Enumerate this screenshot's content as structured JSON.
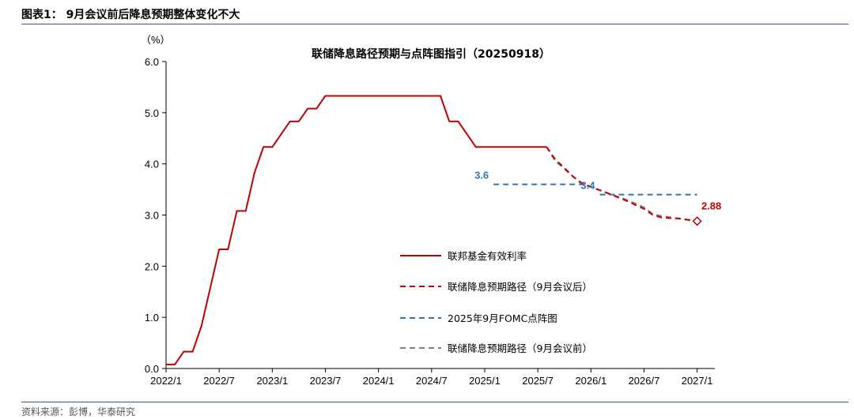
{
  "header": {
    "title": "图表1： 9月会议前后降息预期整体变化不大"
  },
  "footer": {
    "source": "资料来源：彭博，华泰研究"
  },
  "colors": {
    "red": "#c00000",
    "blue": "#2e75b6",
    "gray": "#7f7f7f",
    "rule": "#3b5a7a"
  },
  "chart_data": {
    "type": "line",
    "title": "联储降息路径预期与点阵图指引（20250918）",
    "ylabel": "（%）",
    "ylim": [
      0,
      6
    ],
    "yticks": [
      "0.0",
      "1.0",
      "2.0",
      "3.0",
      "4.0",
      "5.0",
      "6.0"
    ],
    "xlim": [
      "2022-01",
      "2027-03"
    ],
    "xticks": [
      "2022/1",
      "2022/7",
      "2023/1",
      "2023/7",
      "2024/1",
      "2024/7",
      "2025/1",
      "2025/7",
      "2026/1",
      "2026/7",
      "2027/1"
    ],
    "legend_position": "center-right",
    "grid": false,
    "series": [
      {
        "name": "联邦基金有效利率",
        "style": "solid",
        "color": "#c00000",
        "points": [
          [
            "2022-01",
            0.08
          ],
          [
            "2022-02",
            0.08
          ],
          [
            "2022-03",
            0.33
          ],
          [
            "2022-04",
            0.33
          ],
          [
            "2022-05",
            0.83
          ],
          [
            "2022-06",
            1.58
          ],
          [
            "2022-07",
            2.33
          ],
          [
            "2022-08",
            2.33
          ],
          [
            "2022-09",
            3.08
          ],
          [
            "2022-10",
            3.08
          ],
          [
            "2022-11",
            3.83
          ],
          [
            "2022-12",
            4.33
          ],
          [
            "2023-01",
            4.33
          ],
          [
            "2023-02",
            4.58
          ],
          [
            "2023-03",
            4.83
          ],
          [
            "2023-04",
            4.83
          ],
          [
            "2023-05",
            5.08
          ],
          [
            "2023-06",
            5.08
          ],
          [
            "2023-07",
            5.33
          ],
          [
            "2024-08",
            5.33
          ],
          [
            "2024-09",
            4.83
          ],
          [
            "2024-10",
            4.83
          ],
          [
            "2024-11",
            4.58
          ],
          [
            "2024-12",
            4.33
          ],
          [
            "2025-08",
            4.33
          ]
        ]
      },
      {
        "name": "联储降息预期路径（9月会议后）",
        "style": "dashed",
        "color": "#c00000",
        "points": [
          [
            "2025-08",
            4.33
          ],
          [
            "2025-09",
            4.08
          ],
          [
            "2025-10",
            3.92
          ],
          [
            "2025-11",
            3.75
          ],
          [
            "2025-12",
            3.62
          ],
          [
            "2026-01",
            3.55
          ],
          [
            "2026-03",
            3.42
          ],
          [
            "2026-05",
            3.28
          ],
          [
            "2026-07",
            3.12
          ],
          [
            "2026-08",
            3.0
          ],
          [
            "2026-09",
            2.95
          ],
          [
            "2026-11",
            2.93
          ],
          [
            "2027-01",
            2.88
          ]
        ]
      },
      {
        "name": "2025年9月FOMC点阵图",
        "style": "dashed",
        "color": "#2e75b6",
        "segments": [
          {
            "x": [
              "2025-02",
              "2025-12"
            ],
            "y": 3.6
          },
          {
            "x": [
              "2026-02",
              "2027-01"
            ],
            "y": 3.4
          }
        ]
      },
      {
        "name": "联储降息预期路径（9月会议前）",
        "style": "dashed",
        "color": "#7f7f7f",
        "points": [
          [
            "2025-08",
            4.33
          ],
          [
            "2025-09",
            4.05
          ],
          [
            "2025-10",
            3.9
          ],
          [
            "2025-11",
            3.75
          ],
          [
            "2025-12",
            3.6
          ],
          [
            "2026-01",
            3.55
          ],
          [
            "2026-03",
            3.42
          ],
          [
            "2026-05",
            3.3
          ],
          [
            "2026-07",
            3.15
          ],
          [
            "2026-08",
            3.02
          ],
          [
            "2026-09",
            2.98
          ],
          [
            "2026-11",
            2.93
          ],
          [
            "2027-01",
            2.88
          ]
        ]
      }
    ],
    "annotations": [
      {
        "text": "3.6",
        "x": "2025-02",
        "y": 3.6,
        "color": "#2e75b6"
      },
      {
        "text": "3.4",
        "x": "2026-02",
        "y": 3.4,
        "color": "#2e75b6"
      },
      {
        "text": "2.88",
        "x": "2027-01",
        "y": 2.88,
        "color": "#c00000",
        "marker": "diamond"
      }
    ]
  }
}
